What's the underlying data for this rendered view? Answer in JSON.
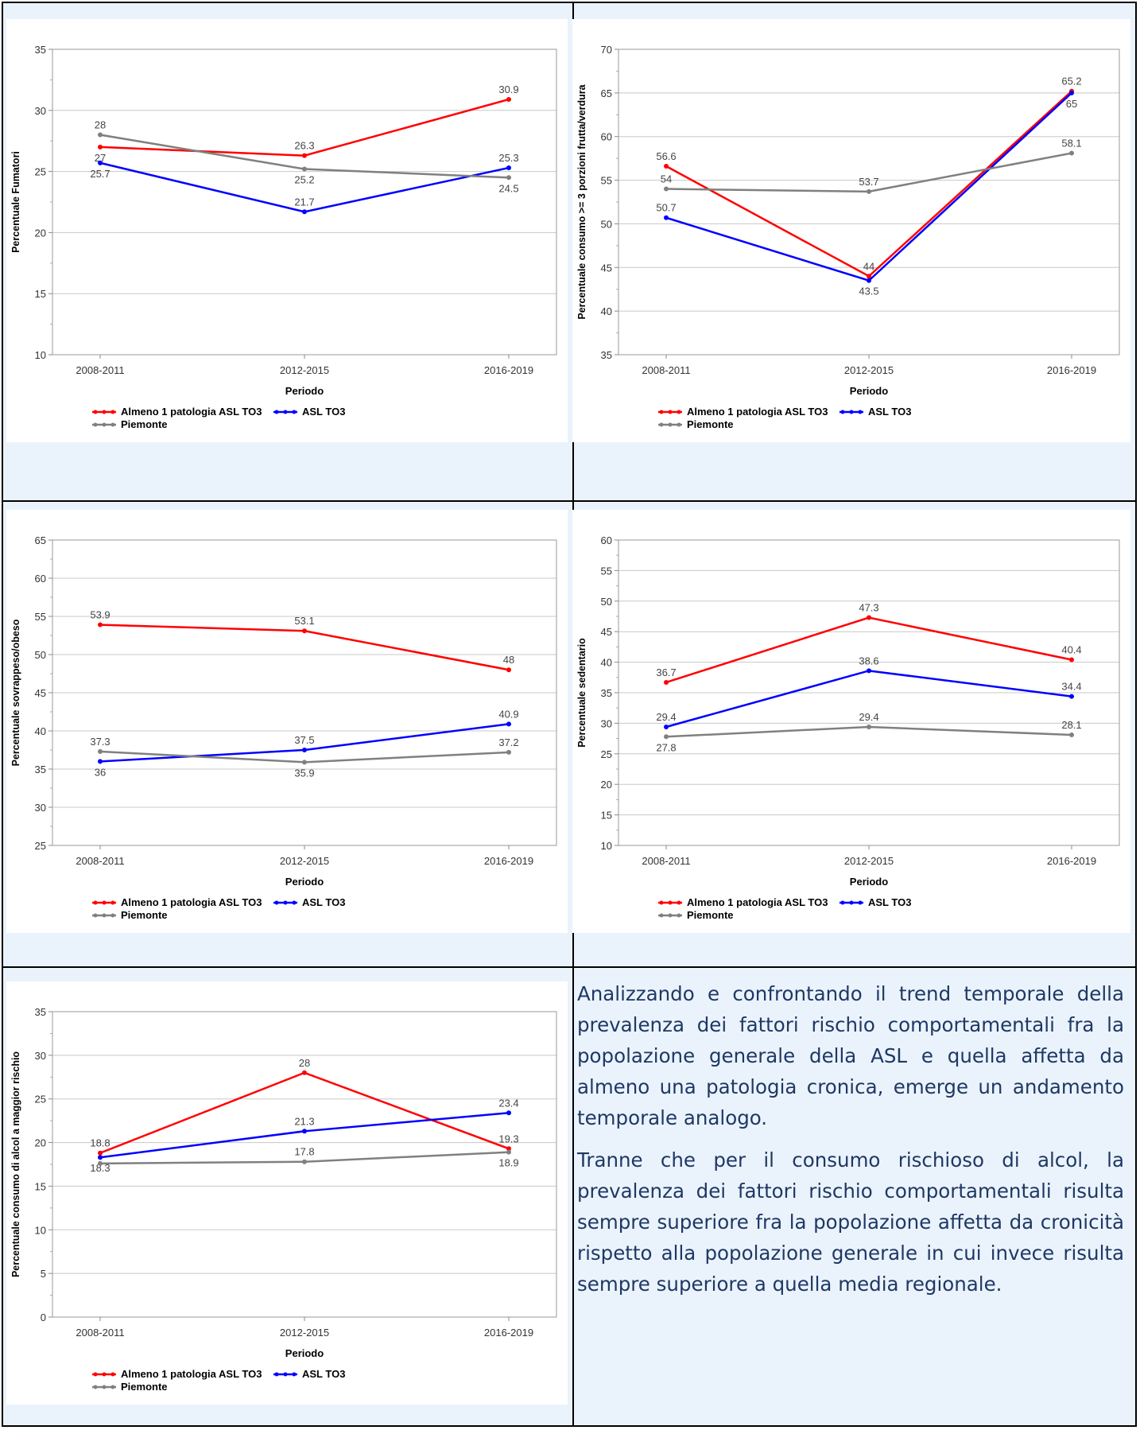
{
  "chart_data": [
    {
      "type": "line",
      "ylabel": "Percentuale Fumatori",
      "xlabel": "Periodo",
      "categories": [
        "2008-2011",
        "2012-2015",
        "2016-2019"
      ],
      "ylim": [
        10,
        35
      ],
      "yticks": [
        10,
        15,
        20,
        25,
        30,
        35
      ],
      "grid": true,
      "legend": "bottom",
      "series": [
        {
          "name": "Almeno 1 patologia ASL TO3",
          "color": "#ff0000",
          "values": [
            27,
            26.3,
            30.9
          ],
          "labels": [
            "27",
            "26.3",
            "30.9"
          ]
        },
        {
          "name": "ASL TO3",
          "color": "#0000ff",
          "values": [
            25.7,
            21.7,
            25.3
          ],
          "labels": [
            "25.7",
            "21.7",
            "25.3"
          ]
        },
        {
          "name": "Piemonte",
          "color": "#808080",
          "values": [
            28,
            25.2,
            24.5
          ],
          "labels": [
            "28",
            "25.2",
            "24.5"
          ]
        }
      ]
    },
    {
      "type": "line",
      "ylabel": "Percentuale consumo >= 3 porzioni frutta/verdura",
      "xlabel": "Periodo",
      "categories": [
        "2008-2011",
        "2012-2015",
        "2016-2019"
      ],
      "ylim": [
        35,
        70
      ],
      "yticks": [
        35,
        40,
        45,
        50,
        55,
        60,
        65,
        70
      ],
      "grid": true,
      "legend": "bottom",
      "series": [
        {
          "name": "Almeno 1 patologia ASL TO3",
          "color": "#ff0000",
          "values": [
            56.6,
            44,
            65.2
          ],
          "labels": [
            "56.6",
            "44",
            "65.2"
          ]
        },
        {
          "name": "ASL TO3",
          "color": "#0000ff",
          "values": [
            50.7,
            43.5,
            65
          ],
          "labels": [
            "50.7",
            "43.5",
            "65"
          ]
        },
        {
          "name": "Piemonte",
          "color": "#808080",
          "values": [
            54,
            53.7,
            58.1
          ],
          "labels": [
            "54",
            "53.7",
            "58.1"
          ]
        }
      ]
    },
    {
      "type": "line",
      "ylabel": "Percentuale sovrappeso/obeso",
      "xlabel": "Periodo",
      "categories": [
        "2008-2011",
        "2012-2015",
        "2016-2019"
      ],
      "ylim": [
        25,
        65
      ],
      "yticks": [
        25,
        30,
        35,
        40,
        45,
        50,
        55,
        60,
        65
      ],
      "grid": true,
      "legend": "bottom",
      "series": [
        {
          "name": "Almeno 1 patologia ASL TO3",
          "color": "#ff0000",
          "values": [
            53.9,
            53.1,
            48
          ],
          "labels": [
            "53.9",
            "53.1",
            "48"
          ]
        },
        {
          "name": "ASL TO3",
          "color": "#0000ff",
          "values": [
            36,
            37.5,
            40.9
          ],
          "labels": [
            "36",
            "37.5",
            "40.9"
          ]
        },
        {
          "name": "Piemonte",
          "color": "#808080",
          "values": [
            37.3,
            35.9,
            37.2
          ],
          "labels": [
            "37.3",
            "35.9",
            "37.2"
          ]
        }
      ]
    },
    {
      "type": "line",
      "ylabel": "Percentuale sedentario",
      "xlabel": "Periodo",
      "categories": [
        "2008-2011",
        "2012-2015",
        "2016-2019"
      ],
      "ylim": [
        10,
        60
      ],
      "yticks": [
        10,
        15,
        20,
        25,
        30,
        35,
        40,
        45,
        50,
        55,
        60
      ],
      "grid": true,
      "legend": "bottom",
      "series": [
        {
          "name": "Almeno 1 patologia ASL TO3",
          "color": "#ff0000",
          "values": [
            36.7,
            47.3,
            40.4
          ],
          "labels": [
            "36.7",
            "47.3",
            "40.4"
          ]
        },
        {
          "name": "ASL TO3",
          "color": "#0000ff",
          "values": [
            29.4,
            38.6,
            34.4
          ],
          "labels": [
            "29.4",
            "38.6",
            "34.4"
          ]
        },
        {
          "name": "Piemonte",
          "color": "#808080",
          "values": [
            27.8,
            29.4,
            28.1
          ],
          "labels": [
            "27.8",
            "29.4",
            "28.1"
          ]
        }
      ]
    },
    {
      "type": "line",
      "ylabel": "Percentuale consumo di alcol a maggior rischio",
      "xlabel": "Periodo",
      "categories": [
        "2008-2011",
        "2012-2015",
        "2016-2019"
      ],
      "ylim": [
        0,
        35
      ],
      "yticks": [
        0,
        5,
        10,
        15,
        20,
        25,
        30,
        35
      ],
      "grid": true,
      "legend": "bottom",
      "series": [
        {
          "name": "Almeno 1 patologia ASL TO3",
          "color": "#ff0000",
          "values": [
            18.8,
            28,
            19.3
          ],
          "labels": [
            "18.8",
            "28",
            "19.3"
          ]
        },
        {
          "name": "ASL TO3",
          "color": "#0000ff",
          "values": [
            18.3,
            21.3,
            23.4
          ],
          "labels": [
            "18.3",
            "21.3",
            "23.4"
          ]
        },
        {
          "name": "Piemonte",
          "color": "#808080",
          "values": [
            17.6,
            17.8,
            18.9
          ],
          "labels": [
            "",
            "17.8",
            "18.9"
          ]
        }
      ]
    }
  ],
  "text": {
    "paragraphs": [
      "Analizzando e confrontando il trend temporale della prevalenza dei fattori rischio comportamentali fra la popolazione generale della ASL e quella affetta da almeno una patologia cronica, emerge un andamento temporale analogo.",
      "Tranne che per il consumo rischioso di alcol, la prevalenza dei fattori rischio comportamentali risulta sempre superiore fra la popolazione affetta da cronicità rispetto alla popolazione generale in cui invece risulta sempre superiore a quella media regionale."
    ]
  }
}
